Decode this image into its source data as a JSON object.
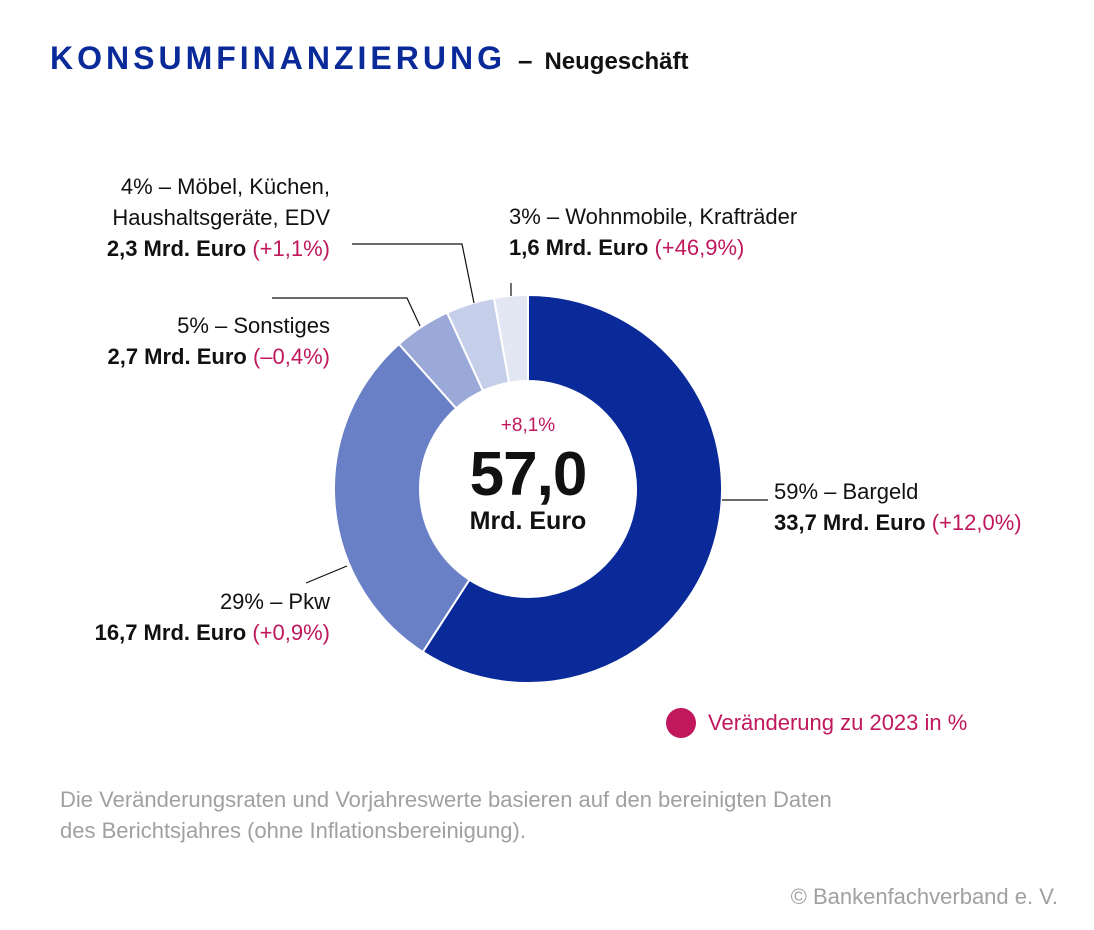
{
  "header": {
    "title": "KONSUMFINANZIERUNG",
    "dash": "–",
    "subtitle": "Neugeschäft"
  },
  "center": {
    "change": "+8,1%",
    "total": "57,0",
    "unit": "Mrd. Euro"
  },
  "labels": {
    "bargeld": {
      "line1": "59% – Bargeld",
      "amount": "33,7 Mrd. Euro",
      "change": "(+12,0%)"
    },
    "pkw": {
      "line1": "29% – Pkw",
      "amount": "16,7 Mrd. Euro",
      "change": "(+0,9%)"
    },
    "sonstiges": {
      "line1": "5% – Sonstiges",
      "amount": "2,7 Mrd. Euro",
      "change": "(–0,4%)"
    },
    "moebel": {
      "line1": "4% – Möbel, Küchen,",
      "line2": "Haushaltsgeräte, EDV",
      "amount": "2,3 Mrd. Euro",
      "change": "(+1,1%)"
    },
    "wohnmobile": {
      "line1": "3% – Wohnmobile, Krafträder",
      "amount": "1,6 Mrd. Euro",
      "change": "(+46,9%)"
    }
  },
  "legend": {
    "label": "Veränderung zu 2023 in %",
    "color": "#c0175d"
  },
  "note": {
    "line1": "Die Veränderungsraten und Vorjahreswerte basieren auf den bereinigten Daten",
    "line2": "des Berichtsjahres (ohne Inflationsbereinigung)."
  },
  "copyright": "© Bankenfachverband e. V.",
  "chart_data": {
    "type": "pie",
    "title": "KONSUMFINANZIERUNG – Neugeschäft",
    "total": 57.0,
    "total_change_pct": 8.1,
    "unit": "Mrd. Euro",
    "categories": [
      "Bargeld",
      "Pkw",
      "Sonstiges",
      "Möbel, Küchen, Haushaltsgeräte, EDV",
      "Wohnmobile, Krafträder"
    ],
    "values": [
      33.7,
      16.7,
      2.7,
      2.3,
      1.6
    ],
    "shares_pct": [
      59,
      29,
      5,
      4,
      3
    ],
    "change_pct": [
      12.0,
      0.9,
      -0.4,
      1.1,
      46.9
    ],
    "colors": [
      "#0a2a9a",
      "#6a80c6",
      "#9ba9d9",
      "#c6cfea",
      "#e3e7f4"
    ]
  }
}
